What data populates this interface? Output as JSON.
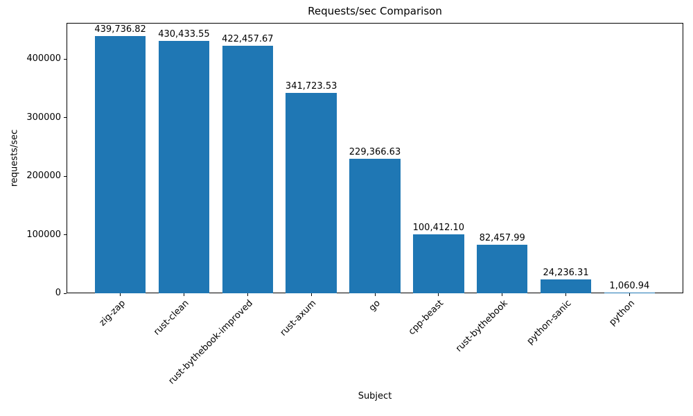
{
  "chart_data": {
    "type": "bar",
    "title": "Requests/sec Comparison",
    "xlabel": "Subject",
    "ylabel": "requests/sec",
    "categories": [
      "zig-zap",
      "rust-clean",
      "rust-bythebook-improved",
      "rust-axum",
      "go",
      "cpp-beast",
      "rust-bythebook",
      "python-sanic",
      "python"
    ],
    "values": [
      439736.82,
      430433.55,
      422457.67,
      341723.53,
      229366.63,
      100412.1,
      82457.99,
      24236.31,
      1060.94
    ],
    "value_labels": [
      "439,736.82",
      "430,433.55",
      "422,457.67",
      "341,723.53",
      "229,366.63",
      "100,412.10",
      "82,457.99",
      "24,236.31",
      "1,060.94"
    ],
    "y_ticks": [
      0,
      100000,
      200000,
      300000,
      400000
    ],
    "y_tick_labels": [
      "0",
      "100000",
      "200000",
      "300000",
      "400000"
    ],
    "ylim": [
      0,
      461723.66
    ],
    "bar_color": "#1f77b4",
    "grid": false,
    "legend": "none",
    "x_tick_rotation": 45
  }
}
